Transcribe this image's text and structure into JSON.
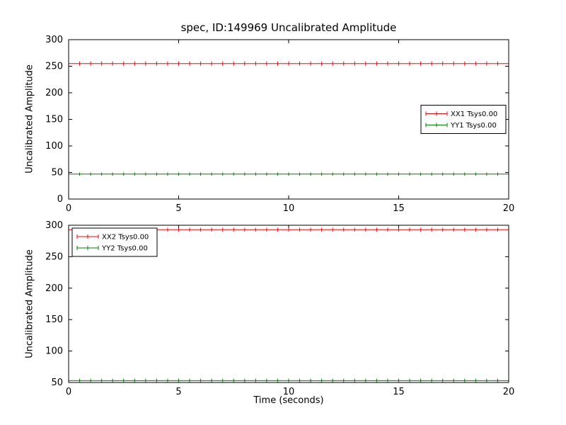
{
  "title": "spec, ID:149969 Uncalibrated Amplitude",
  "xlabel": "Time (seconds)",
  "background_color": "#ffffff",
  "axis_color": "#000000",
  "chart_data": [
    {
      "type": "line",
      "title": "",
      "ylabel": "Uncalibrated Amplitude",
      "xlim": [
        0,
        20
      ],
      "ylim": [
        0,
        300
      ],
      "xticks": [
        0,
        5,
        10,
        15,
        20
      ],
      "yticks": [
        0,
        50,
        100,
        150,
        200,
        250,
        300
      ],
      "grid": false,
      "legend": {
        "loc": "center right",
        "entries": [
          "XX1 Tsys0.00",
          "YY1 Tsys0.00"
        ]
      },
      "series": [
        {
          "name": "XX1 Tsys0.00",
          "color": "#ff0000",
          "style": "errorbar",
          "x_start": 0,
          "x_end": 20,
          "x_step": 0.5,
          "y_value": 255,
          "y_error": 4
        },
        {
          "name": "YY1 Tsys0.00",
          "color": "#008000",
          "style": "errorbar",
          "x_start": 0,
          "x_end": 20,
          "x_step": 0.5,
          "y_value": 47,
          "y_error": 3
        }
      ]
    },
    {
      "type": "line",
      "title": "",
      "ylabel": "Uncalibrated Amplitude",
      "xlim": [
        0,
        20
      ],
      "ylim": [
        50,
        300
      ],
      "xticks": [
        0,
        5,
        10,
        15,
        20
      ],
      "yticks": [
        50,
        100,
        150,
        200,
        250,
        300
      ],
      "grid": false,
      "legend": {
        "loc": "upper left",
        "entries": [
          "XX2 Tsys0.00",
          "YY2 Tsys0.00"
        ]
      },
      "series": [
        {
          "name": "XX2 Tsys0.00",
          "color": "#ff0000",
          "style": "errorbar",
          "x_start": 0,
          "x_end": 20,
          "x_step": 0.5,
          "y_value": 293,
          "y_error": 3
        },
        {
          "name": "YY2 Tsys0.00",
          "color": "#008000",
          "style": "errorbar",
          "x_start": 0,
          "x_end": 20,
          "x_step": 0.5,
          "y_value": 53,
          "y_error": 3
        }
      ]
    }
  ]
}
